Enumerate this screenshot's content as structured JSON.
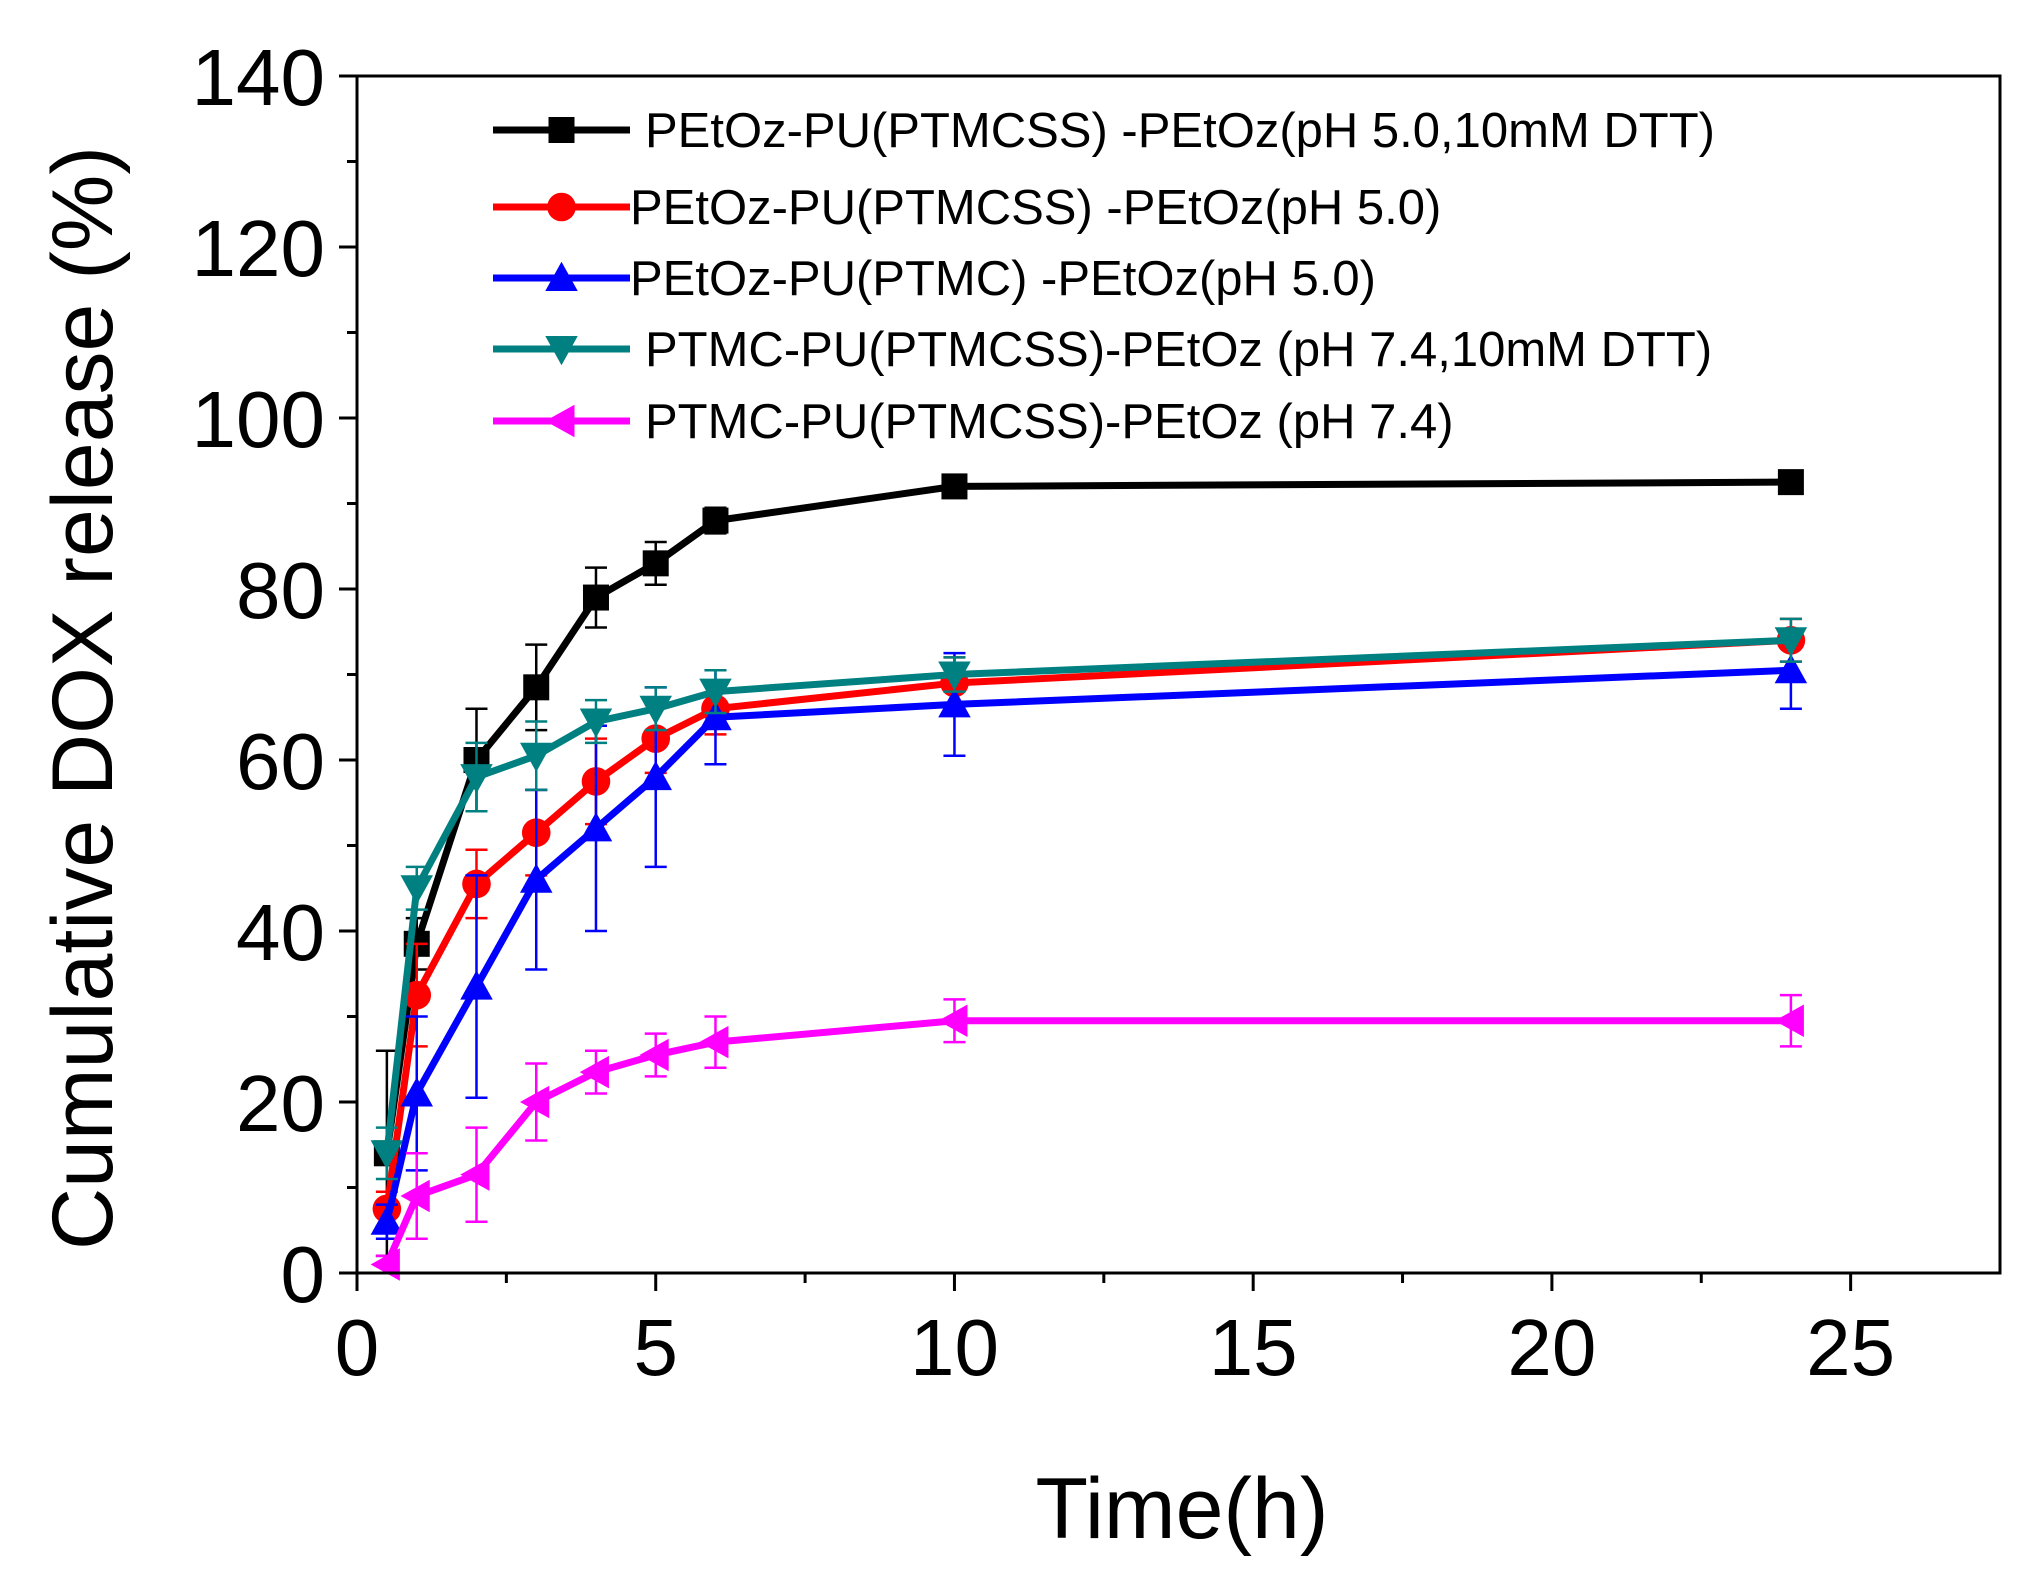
{
  "chart_data": {
    "type": "line",
    "xlabel": "Time(h)",
    "ylabel": "Cumulative DOX release (%)",
    "xlim": [
      0,
      27.5
    ],
    "ylim": [
      0,
      140
    ],
    "xticks": [
      0,
      5,
      10,
      15,
      20,
      25
    ],
    "xtick_labels": [
      "0",
      "5",
      "10",
      "15",
      "20",
      "25"
    ],
    "yticks": [
      0,
      20,
      40,
      60,
      80,
      100,
      120,
      140
    ],
    "ytick_labels": [
      "0",
      "20",
      "40",
      "60",
      "80",
      "100",
      "120",
      "140"
    ],
    "grid": false,
    "legend_position": "top-right",
    "x": [
      0.5,
      1,
      2,
      3,
      4,
      5,
      6,
      10,
      24
    ],
    "series": [
      {
        "name": "PEtOz-PU(PTMCSS) -PEtOz(pH 5.0,10mM DTT)",
        "color": "#000000",
        "marker": "square",
        "values": [
          14,
          38.5,
          60,
          68.5,
          79,
          83,
          88,
          92,
          92.5
        ],
        "errors": [
          12,
          3,
          6,
          5,
          3.5,
          2.5,
          1.5,
          1,
          1
        ]
      },
      {
        "name": "PEtOz-PU(PTMCSS) -PEtOz(pH 5.0)",
        "color": "#ff0000",
        "marker": "circle",
        "values": [
          7.5,
          32.5,
          45.5,
          51.5,
          57.5,
          62.5,
          66,
          69,
          74
        ],
        "errors": [
          2,
          6,
          4,
          5,
          5,
          4,
          3,
          3,
          2.5
        ]
      },
      {
        "name": "PEtOz-PU(PTMC) -PEtOz(pH 5.0)",
        "color": "#0000ff",
        "marker": "triangle-up",
        "values": [
          6,
          21,
          33.5,
          46,
          52,
          58,
          65,
          66.5,
          70.5
        ],
        "errors": [
          2,
          9,
          13,
          10.5,
          12,
          10.5,
          5.5,
          6,
          4.5
        ]
      },
      {
        "name": "PTMC-PU(PTMCSS)-PEtOz (pH 7.4,10mM DTT)",
        "color": "#008080",
        "marker": "triangle-down",
        "values": [
          14,
          45,
          58,
          60.5,
          64.5,
          66,
          68,
          70,
          74
        ],
        "errors": [
          3,
          2.5,
          4,
          4,
          2.5,
          2.5,
          2.5,
          2,
          2.5
        ]
      },
      {
        "name": "PTMC-PU(PTMCSS)-PEtOz (pH 7.4)",
        "color": "#ff00ff",
        "marker": "triangle-left",
        "values": [
          1,
          9,
          11.5,
          20,
          23.5,
          25.5,
          27,
          29.5,
          29.5
        ],
        "errors": [
          1,
          5,
          5.5,
          4.5,
          2.5,
          2.5,
          3,
          2.5,
          3
        ]
      }
    ]
  }
}
